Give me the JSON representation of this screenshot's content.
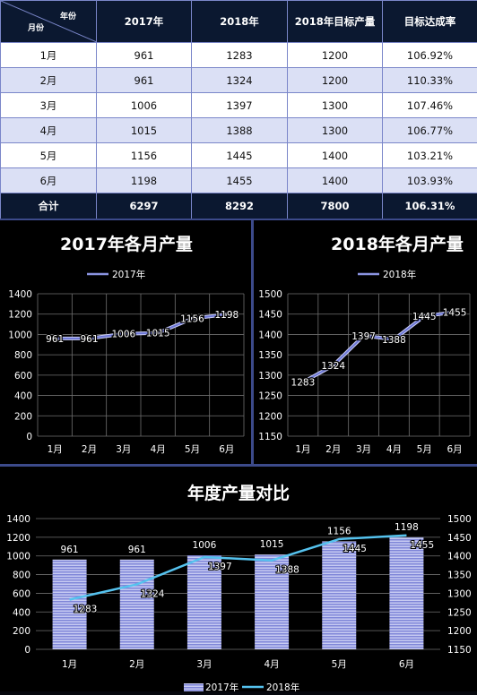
{
  "table": {
    "corner_top": "年份",
    "corner_bottom": "月份",
    "headers": [
      "2017年",
      "2018年",
      "2018年目标产量",
      "目标达成率"
    ],
    "rows": [
      {
        "month": "1月",
        "y2017": "961",
        "y2018": "1283",
        "target": "1200",
        "rate": "106.92%"
      },
      {
        "month": "2月",
        "y2017": "961",
        "y2018": "1324",
        "target": "1200",
        "rate": "110.33%"
      },
      {
        "month": "3月",
        "y2017": "1006",
        "y2018": "1397",
        "target": "1300",
        "rate": "107.46%"
      },
      {
        "month": "4月",
        "y2017": "1015",
        "y2018": "1388",
        "target": "1300",
        "rate": "106.77%"
      },
      {
        "month": "5月",
        "y2017": "1156",
        "y2018": "1445",
        "target": "1400",
        "rate": "103.21%"
      },
      {
        "month": "6月",
        "y2017": "1198",
        "y2018": "1455",
        "target": "1400",
        "rate": "103.93%"
      }
    ],
    "total": {
      "label": "合计",
      "y2017": "6297",
      "y2018": "8292",
      "target": "7800",
      "rate": "106.31%"
    }
  },
  "colors": {
    "background": "#000000",
    "header_bg": "#0b1830",
    "row_alt": "#dbe0f5",
    "line_2017": "#8a93e0",
    "line_2018": "#8a93e0",
    "bar_2017": "#7f86d8",
    "line_combo_2018": "#55c2ee",
    "grid": "#6f6f6f"
  },
  "chart_data": [
    {
      "type": "line",
      "title": "2017年各月产量",
      "categories": [
        "1月",
        "2月",
        "3月",
        "4月",
        "5月",
        "6月"
      ],
      "series": [
        {
          "name": "2017年",
          "values": [
            961,
            961,
            1006,
            1015,
            1156,
            1198
          ]
        }
      ],
      "ylim": [
        0,
        1400
      ],
      "yticks": [
        0,
        200,
        400,
        600,
        800,
        1000,
        1200,
        1400
      ],
      "grid": true,
      "legend": "top"
    },
    {
      "type": "line",
      "title": "2018年各月产量",
      "categories": [
        "1月",
        "2月",
        "3月",
        "4月",
        "5月",
        "6月"
      ],
      "series": [
        {
          "name": "2018年",
          "values": [
            1283,
            1324,
            1397,
            1388,
            1445,
            1455
          ]
        }
      ],
      "ylim": [
        1150,
        1500
      ],
      "yticks": [
        1150,
        1200,
        1250,
        1300,
        1350,
        1400,
        1450,
        1500
      ],
      "grid": true,
      "legend": "top"
    },
    {
      "type": "bar",
      "title": "年度产量对比",
      "categories": [
        "1月",
        "2月",
        "3月",
        "4月",
        "5月",
        "6月"
      ],
      "series": [
        {
          "name": "2017年",
          "type": "bar",
          "axis": "left",
          "values": [
            961,
            961,
            1006,
            1015,
            1156,
            1198
          ]
        },
        {
          "name": "2018年",
          "type": "line",
          "axis": "right",
          "values": [
            1283,
            1324,
            1397,
            1388,
            1445,
            1455
          ]
        }
      ],
      "ylim": [
        0,
        1400
      ],
      "yticks": [
        0,
        200,
        400,
        600,
        800,
        1000,
        1200,
        1400
      ],
      "y2lim": [
        1150,
        1500
      ],
      "y2ticks": [
        1150,
        1200,
        1250,
        1300,
        1350,
        1400,
        1450,
        1500
      ],
      "grid": true,
      "legend": "bottom"
    }
  ]
}
